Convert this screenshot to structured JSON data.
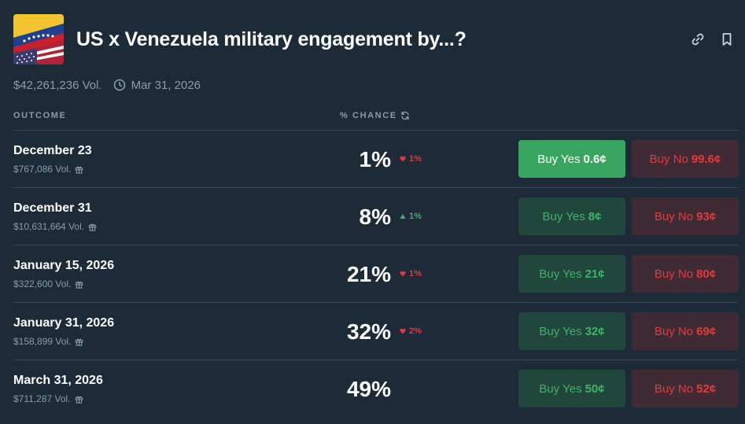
{
  "header": {
    "title": "US x Venezuela military engagement by...?",
    "volume": "$42,261,236 Vol.",
    "end_date": "Mar 31, 2026"
  },
  "columns": {
    "outcome": "OUTCOME",
    "chance": "% CHANCE"
  },
  "colors": {
    "background": "#1d2b39",
    "yes_active": "#38a661",
    "yes_bg": "#21463c",
    "no_bg": "#402b35",
    "up": "#3db468",
    "down": "#e23a3a"
  },
  "outcomes": [
    {
      "name": "December 23",
      "volume": "$767,086 Vol.",
      "chance": "1%",
      "change": "1%",
      "direction": "down",
      "yes_label": "Buy Yes",
      "yes_price": "0.6¢",
      "no_label": "Buy No",
      "no_price": "99.6¢",
      "yes_active": true
    },
    {
      "name": "December 31",
      "volume": "$10,631,664 Vol.",
      "chance": "8%",
      "change": "1%",
      "direction": "up",
      "yes_label": "Buy Yes",
      "yes_price": "8¢",
      "no_label": "Buy No",
      "no_price": "93¢",
      "yes_active": false
    },
    {
      "name": "January 15, 2026",
      "volume": "$322,600 Vol.",
      "chance": "21%",
      "change": "1%",
      "direction": "down",
      "yes_label": "Buy Yes",
      "yes_price": "21¢",
      "no_label": "Buy No",
      "no_price": "80¢",
      "yes_active": false
    },
    {
      "name": "January 31, 2026",
      "volume": "$158,899 Vol.",
      "chance": "32%",
      "change": "2%",
      "direction": "down",
      "yes_label": "Buy Yes",
      "yes_price": "32¢",
      "no_label": "Buy No",
      "no_price": "69¢",
      "yes_active": false
    },
    {
      "name": "March 31, 2026",
      "volume": "$711,287 Vol.",
      "chance": "49%",
      "change": "",
      "direction": "none",
      "yes_label": "Buy Yes",
      "yes_price": "50¢",
      "no_label": "Buy No",
      "no_price": "52¢",
      "yes_active": false
    }
  ]
}
